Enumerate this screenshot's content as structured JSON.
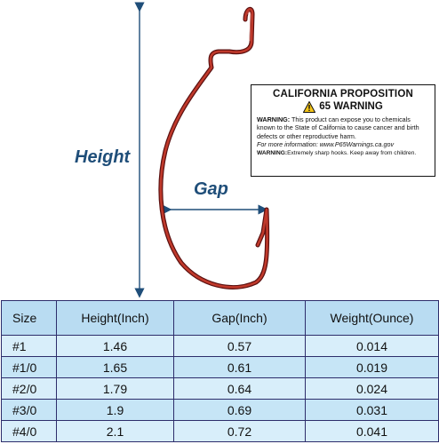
{
  "labels": {
    "height": "Height",
    "gap": "Gap"
  },
  "warning": {
    "title_line1": "CALIFORNIA PROPOSITION",
    "title_line2": "65 WARNING",
    "warning_word": "WARNING:",
    "body": "This product can expose you to chemicals known to the State of California to cause cancer and birth defects or other reproductive harm.",
    "info": "For more information: www.P65Warnings.ca.gov",
    "sharp_word": "WARNING:",
    "sharp": "Extremely sharp hooks. Keep away from children."
  },
  "table": {
    "headers": [
      "Size",
      "Height(Inch)",
      "Gap(Inch)",
      "Weight(Ounce)"
    ],
    "rows": [
      [
        "#1",
        "1.46",
        "0.57",
        "0.014"
      ],
      [
        "#1/0",
        "1.65",
        "0.61",
        "0.019"
      ],
      [
        "#2/0",
        "1.79",
        "0.64",
        "0.024"
      ],
      [
        "#3/0",
        "1.9",
        "0.69",
        "0.031"
      ],
      [
        "#4/0",
        "2.1",
        "0.72",
        "0.041"
      ]
    ]
  },
  "colors": {
    "hook": "#c0392b",
    "arrow": "#1f4e79",
    "header_bg": "#b9dcf2",
    "row_bg": "#d8eefa"
  }
}
